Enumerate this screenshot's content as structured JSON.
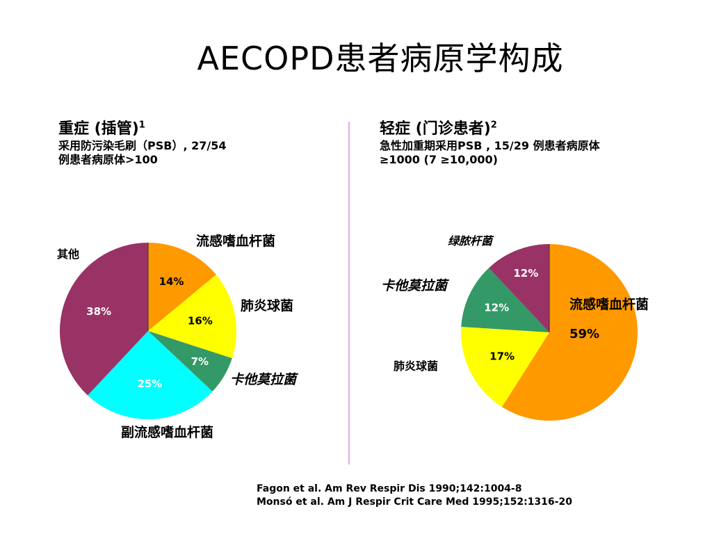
{
  "title": "AECOPD患者病原学构成",
  "left_panel": {
    "heading": "重症 (插管)",
    "heading_sup": "1",
    "desc_line1": "采用防污染毛刷（PSB）, 27/54",
    "desc_line2": "例患者病原体>100"
  },
  "right_panel": {
    "heading": "轻症 (门诊患者)",
    "heading_sup": "2",
    "desc_line1": "急性加重期采用PSB , 15/29 例患者病原体",
    "desc_line2": "≥1000 (7 ≥10,000)"
  },
  "chart_data": [
    {
      "type": "pie",
      "title": "重症 (插管)",
      "slices": [
        {
          "label": "流感嗜血杆菌",
          "value": 14,
          "value_label": "14%",
          "color": "#FF9900"
        },
        {
          "label": "肺炎球菌",
          "value": 16,
          "value_label": "16%",
          "color": "#FFFF00"
        },
        {
          "label": "卡他莫拉菌",
          "value": 7,
          "value_label": "7%",
          "color": "#339966"
        },
        {
          "label": "副流感嗜血杆菌",
          "value": 25,
          "value_label": "25%",
          "color": "#00FFFF"
        },
        {
          "label": "其他",
          "value": 38,
          "value_label": "38%",
          "color": "#993366"
        }
      ]
    },
    {
      "type": "pie",
      "title": "轻症 (门诊患者)",
      "slices": [
        {
          "label": "流感嗜血杆菌",
          "value": 59,
          "value_label": "59%",
          "color": "#FF9900"
        },
        {
          "label": "肺炎球菌",
          "value": 17,
          "value_label": "17%",
          "color": "#FFFF00"
        },
        {
          "label": "卡他莫拉菌",
          "value": 12,
          "value_label": "12%",
          "color": "#339966"
        },
        {
          "label": "绿脓杆菌",
          "value": 12,
          "value_label": "12%",
          "color": "#993366"
        }
      ]
    }
  ],
  "references": [
    "Fagon et al. Am Rev Respir Dis 1990;142:1004-8",
    "Monsó et al. Am J Respir Crit Care Med 1995;152:1316-20"
  ]
}
